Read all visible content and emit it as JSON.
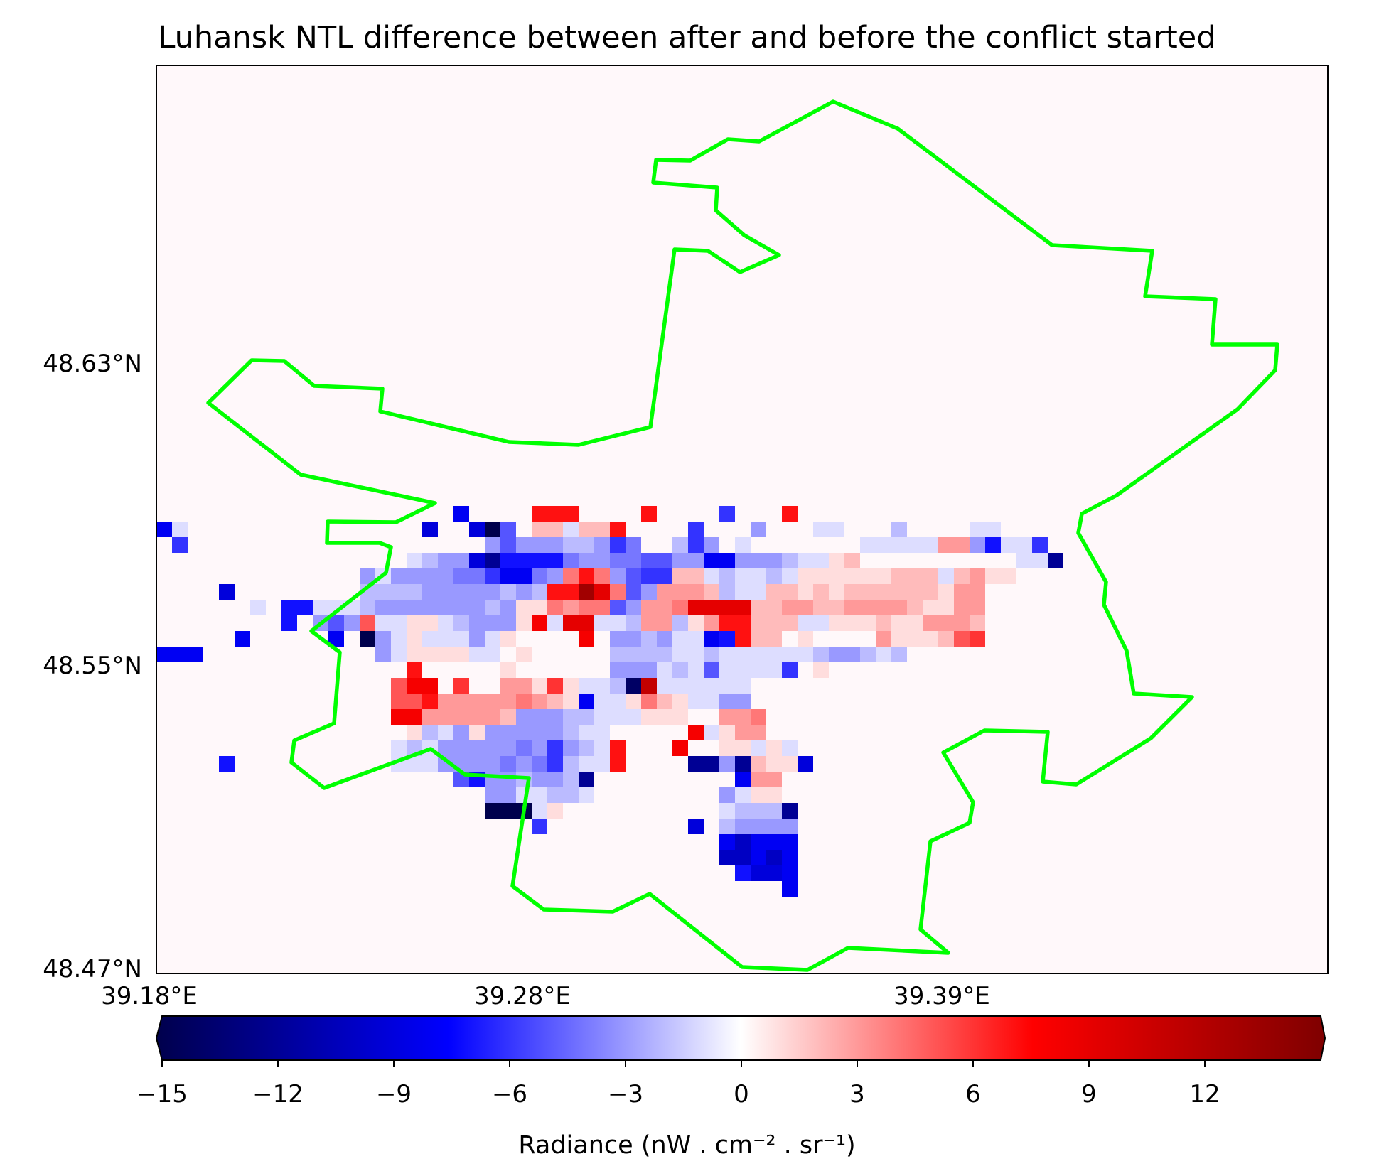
{
  "chart_data": {
    "type": "heatmap",
    "title": "Luhansk NTL difference between after and before the conflict started",
    "x_ticks": [
      "39.18°E",
      "39.28°E",
      "39.39°E"
    ],
    "y_ticks": [
      "48.63°N",
      "48.55°N",
      "48.47°N"
    ],
    "colorbar": {
      "colormap": "seismic",
      "range": [
        -15,
        15
      ],
      "extend": "both",
      "ticks": [
        -15,
        -12,
        -9,
        -6,
        -3,
        0,
        3,
        6,
        9,
        12
      ],
      "tick_labels": [
        "−15",
        "−12",
        "−9",
        "−6",
        "−3",
        "0",
        "3",
        "6",
        "9",
        "12"
      ],
      "label": "Radiance (nW . cm⁻² . sr⁻¹)"
    },
    "boundary_color": "#00ff00",
    "background_value": 0
  }
}
